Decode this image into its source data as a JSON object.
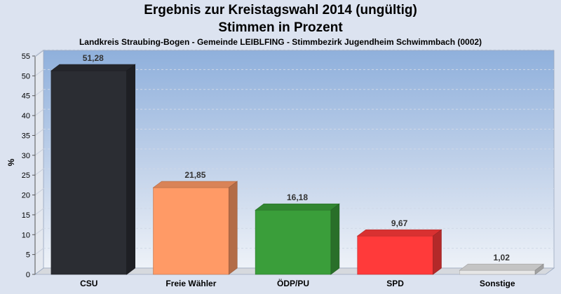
{
  "header": {
    "title": "Ergebnis zur Kreistagswahl 2014 (ungültig)",
    "subtitle": "Stimmen in Prozent",
    "subsubtitle": "Landkreis Straubing-Bogen - Gemeinde LEIBLFING - Stimmbezirk Jugendheim Schwimmbach (0002)"
  },
  "chart_data": {
    "type": "bar",
    "title": "Ergebnis zur Kreistagswahl 2014 (ungültig)",
    "subtitle": "Stimmen in Prozent",
    "ylabel": "%",
    "xlabel": "",
    "ylim": [
      0,
      55
    ],
    "yticks": [
      0,
      5,
      10,
      15,
      20,
      25,
      30,
      35,
      40,
      45,
      50,
      55
    ],
    "grid": true,
    "categories": [
      "CSU",
      "Freie Wähler",
      "ÖDP/PU",
      "SPD",
      "Sonstige"
    ],
    "values": [
      51.28,
      21.85,
      16.18,
      9.67,
      1.02
    ],
    "value_labels": [
      "51,28",
      "21,85",
      "16,18",
      "9,67",
      "1,02"
    ],
    "colors": [
      "#2b2d33",
      "#ff9a66",
      "#3a9e3a",
      "#ff3a3a",
      "#e6e6e6"
    ]
  }
}
